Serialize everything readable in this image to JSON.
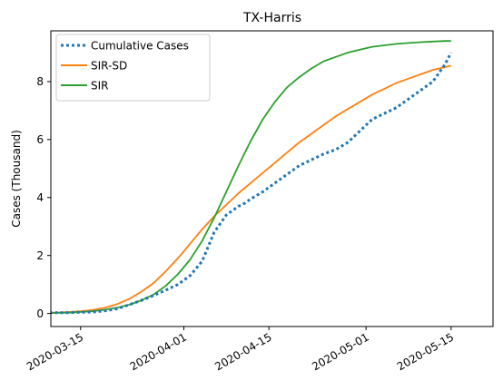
{
  "chart_data": {
    "type": "line",
    "title": "TX-Harris",
    "xlabel": "",
    "ylabel": "Cases (Thousand)",
    "xlim_day": [
      -4.9,
      67.9
    ],
    "ylim": [
      -0.45,
      9.75
    ],
    "x_ticks": [
      {
        "day": 0,
        "label": "2020-03-15"
      },
      {
        "day": 17,
        "label": "2020-04-01"
      },
      {
        "day": 31,
        "label": "2020-04-15"
      },
      {
        "day": 47,
        "label": "2020-05-01"
      },
      {
        "day": 61,
        "label": "2020-05-15"
      }
    ],
    "y_ticks": [
      0,
      2,
      4,
      6,
      8
    ],
    "legend_position": "upper-left",
    "series": [
      {
        "name": "Cumulative Cases",
        "color": "#1f77b4",
        "style": "dotted",
        "x": [
          -6,
          -4,
          -2,
          0,
          2,
          4,
          6,
          8,
          10,
          12,
          14,
          16,
          18,
          20,
          22,
          24,
          26,
          27,
          28,
          30,
          32,
          34,
          36,
          38,
          40,
          42,
          44,
          46,
          48,
          50,
          52,
          54,
          56,
          58,
          60,
          61
        ],
        "y": [
          0.03,
          0.03,
          0.03,
          0.04,
          0.05,
          0.09,
          0.16,
          0.3,
          0.45,
          0.62,
          0.8,
          1.0,
          1.3,
          1.8,
          2.8,
          3.4,
          3.7,
          3.8,
          3.95,
          4.2,
          4.5,
          4.8,
          5.1,
          5.3,
          5.5,
          5.65,
          5.9,
          6.3,
          6.7,
          6.9,
          7.1,
          7.4,
          7.7,
          8.0,
          8.6,
          9.0
        ]
      },
      {
        "name": "SIR-SD",
        "color": "#ff7f0e",
        "style": "solid",
        "x": [
          -6,
          -4,
          -2,
          0,
          2,
          4,
          6,
          8,
          10,
          12,
          14,
          16,
          18,
          20,
          22,
          24,
          26,
          28,
          30,
          32,
          34,
          36,
          38,
          40,
          42,
          44,
          46,
          48,
          50,
          52,
          54,
          56,
          58,
          60,
          61
        ],
        "y": [
          0.02,
          0.03,
          0.05,
          0.08,
          0.12,
          0.2,
          0.32,
          0.5,
          0.75,
          1.05,
          1.45,
          1.9,
          2.4,
          2.9,
          3.35,
          3.75,
          4.15,
          4.5,
          4.85,
          5.2,
          5.55,
          5.9,
          6.2,
          6.5,
          6.8,
          7.05,
          7.3,
          7.55,
          7.75,
          7.95,
          8.1,
          8.25,
          8.4,
          8.5,
          8.55
        ]
      },
      {
        "name": "SIR",
        "color": "#2ca02c",
        "style": "solid",
        "x": [
          -6,
          -4,
          -2,
          0,
          2,
          4,
          6,
          8,
          10,
          12,
          14,
          16,
          18,
          20,
          22,
          24,
          26,
          28,
          30,
          32,
          34,
          36,
          38,
          40,
          42,
          44,
          46,
          48,
          50,
          52,
          54,
          56,
          58,
          60,
          61
        ],
        "y": [
          0.01,
          0.02,
          0.03,
          0.05,
          0.08,
          0.13,
          0.2,
          0.3,
          0.45,
          0.65,
          0.95,
          1.35,
          1.85,
          2.5,
          3.3,
          4.2,
          5.1,
          5.95,
          6.7,
          7.3,
          7.8,
          8.15,
          8.45,
          8.7,
          8.85,
          9.0,
          9.1,
          9.2,
          9.25,
          9.3,
          9.33,
          9.36,
          9.38,
          9.4,
          9.4
        ]
      }
    ]
  }
}
